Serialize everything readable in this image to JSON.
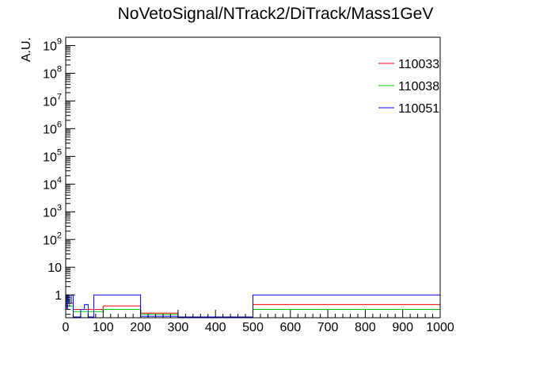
{
  "chart_data": {
    "type": "line",
    "title": "NoVetoSignal/NTrack2/DiTrack/Mass1GeV",
    "xlabel": "",
    "ylabel": "A.U.",
    "xlim": [
      0,
      1000
    ],
    "ylim": [
      0.15,
      2000000000
    ],
    "y_scale": "log",
    "grid": false,
    "legend_position": "top-right",
    "x_ticks": [
      {
        "value": 0,
        "label": "0"
      },
      {
        "value": 100,
        "label": "100"
      },
      {
        "value": 200,
        "label": "200"
      },
      {
        "value": 300,
        "label": "300"
      },
      {
        "value": 400,
        "label": "400"
      },
      {
        "value": 500,
        "label": "500"
      },
      {
        "value": 600,
        "label": "600"
      },
      {
        "value": 700,
        "label": "700"
      },
      {
        "value": 800,
        "label": "800"
      },
      {
        "value": 900,
        "label": "900"
      },
      {
        "value": 1000,
        "label": "1000"
      }
    ],
    "y_ticks": [
      {
        "value": 1,
        "base": "1",
        "exp": ""
      },
      {
        "value": 10,
        "base": "10",
        "exp": ""
      },
      {
        "value": 100,
        "base": "10",
        "exp": "2"
      },
      {
        "value": 1000,
        "base": "10",
        "exp": "3"
      },
      {
        "value": 10000,
        "base": "10",
        "exp": "4"
      },
      {
        "value": 100000,
        "base": "10",
        "exp": "5"
      },
      {
        "value": 1000000,
        "base": "10",
        "exp": "6"
      },
      {
        "value": 10000000,
        "base": "10",
        "exp": "7"
      },
      {
        "value": 100000000,
        "base": "10",
        "exp": "8"
      },
      {
        "value": 1000000000,
        "base": "10",
        "exp": "9"
      }
    ],
    "series": [
      {
        "name": "110033",
        "color": "#ff0000",
        "bins": [
          {
            "x0": 0,
            "x1": 5,
            "y": 0.8
          },
          {
            "x0": 5,
            "x1": 10,
            "y": 0.6
          },
          {
            "x0": 10,
            "x1": 20,
            "y": 0.5
          },
          {
            "x0": 20,
            "x1": 100,
            "y": 0.3
          },
          {
            "x0": 100,
            "x1": 200,
            "y": 0.4
          },
          {
            "x0": 200,
            "x1": 300,
            "y": 0.22
          },
          {
            "x0": 300,
            "x1": 500,
            "y": 0.16
          },
          {
            "x0": 500,
            "x1": 1000,
            "y": 0.45
          }
        ]
      },
      {
        "name": "110038",
        "color": "#00cc00",
        "bins": [
          {
            "x0": 0,
            "x1": 5,
            "y": 0.9
          },
          {
            "x0": 5,
            "x1": 10,
            "y": 0.7
          },
          {
            "x0": 10,
            "x1": 20,
            "y": 0.4
          },
          {
            "x0": 20,
            "x1": 100,
            "y": 0.25
          },
          {
            "x0": 100,
            "x1": 200,
            "y": 0.3
          },
          {
            "x0": 200,
            "x1": 300,
            "y": 0.2
          },
          {
            "x0": 300,
            "x1": 500,
            "y": 0.16
          },
          {
            "x0": 500,
            "x1": 1000,
            "y": 0.3
          }
        ]
      },
      {
        "name": "110051",
        "color": "#0000ff",
        "bins": [
          {
            "x0": 0,
            "x1": 2,
            "y": 1.0
          },
          {
            "x0": 2,
            "x1": 5,
            "y": 0.3
          },
          {
            "x0": 5,
            "x1": 8,
            "y": 1.0
          },
          {
            "x0": 8,
            "x1": 15,
            "y": 0.5
          },
          {
            "x0": 15,
            "x1": 20,
            "y": 1.0
          },
          {
            "x0": 20,
            "x1": 40,
            "y": 0.16
          },
          {
            "x0": 40,
            "x1": 50,
            "y": 0.3
          },
          {
            "x0": 50,
            "x1": 60,
            "y": 0.45
          },
          {
            "x0": 60,
            "x1": 75,
            "y": 0.16
          },
          {
            "x0": 75,
            "x1": 100,
            "y": 1.0
          },
          {
            "x0": 100,
            "x1": 200,
            "y": 1.0
          },
          {
            "x0": 200,
            "x1": 300,
            "y": 0.17
          },
          {
            "x0": 300,
            "x1": 500,
            "y": 0.16
          },
          {
            "x0": 500,
            "x1": 1000,
            "y": 1.0
          }
        ]
      }
    ]
  }
}
